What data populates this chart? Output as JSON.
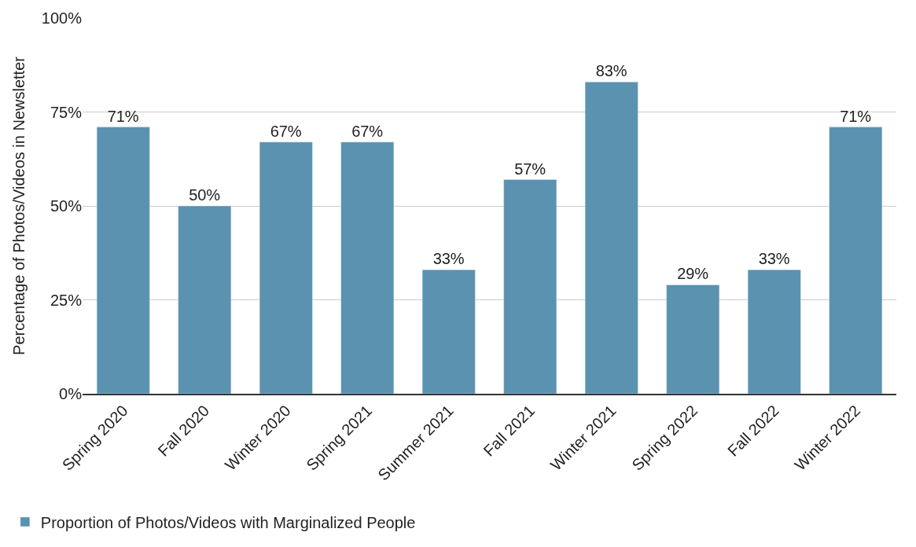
{
  "chart_data": {
    "type": "bar",
    "ylabel": "Percentage of Photos/Videos in Newsletter",
    "categories": [
      "Spring 2020",
      "Fall 2020",
      "Winter 2020",
      "Spring 2021",
      "Summer 2021",
      "Fall 2021",
      "Winter 2021",
      "Spring 2022",
      "Fall 2022",
      "Winter 2022"
    ],
    "series": [
      {
        "name": "Proportion of Photos/Videos with Marginalized People",
        "color": "#5a92b0",
        "values": [
          71,
          50,
          67,
          67,
          33,
          57,
          83,
          29,
          33,
          71
        ],
        "value_labels": [
          "71%",
          "50%",
          "67%",
          "67%",
          "33%",
          "57%",
          "83%",
          "29%",
          "33%",
          "71%"
        ]
      }
    ],
    "ylim": [
      0,
      100
    ],
    "yticks": [
      {
        "value": 0,
        "label": "0%"
      },
      {
        "value": 25,
        "label": "25%"
      },
      {
        "value": 50,
        "label": "50%"
      },
      {
        "value": 75,
        "label": "75%"
      },
      {
        "value": 100,
        "label": "100%"
      }
    ],
    "grid": "y",
    "legend": "bottom left"
  }
}
